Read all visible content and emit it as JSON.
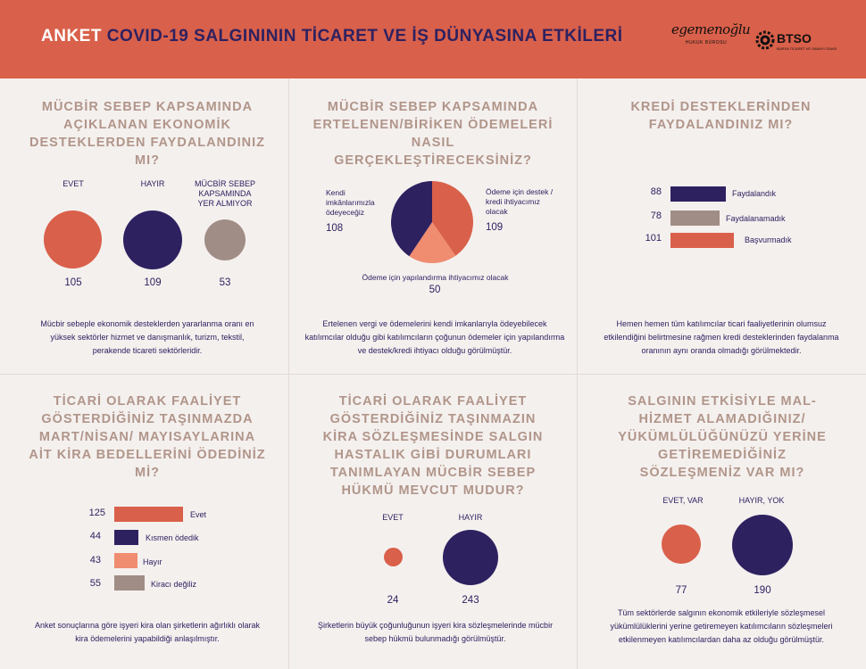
{
  "header": {
    "anket": "ANKET",
    "title": "COVID-19 SALGINININ TİCARET VE İŞ DÜNYASINA ETKİLERİ",
    "logo1_text": "egemenoğlu",
    "logo1_sub": "HUKUK BÜROSU",
    "logo2_text": "BTSO",
    "logo2_sub": "BURSA TİCARET VE SANAYİ ODASI"
  },
  "colors": {
    "orange": "#d9604a",
    "purple": "#2e2160",
    "taupe": "#a08d85",
    "salmon": "#f08c70",
    "title": "#b1958a",
    "header": "#d9604a"
  },
  "panels": {
    "p1": {
      "title": "MÜCBİR SEBEP KAPSAMINDA AÇIKLANAN EKONOMİK DESTEKLERDEN FAYDALANDINIZ MI?",
      "labels": [
        "EVET",
        "HAYIR",
        "MÜCBİR SEBEP KAPSAMINDA YER ALMIYOR"
      ],
      "values": [
        "105",
        "109",
        "53"
      ],
      "desc": "Mücbir sebeple ekonomik desteklerden yararlanma oranı en yüksek sektörler hizmet ve danışmanlık, turizm, tekstil, perakende ticareti sektörleridir."
    },
    "p2": {
      "title": "MÜCBİR SEBEP KAPSAMINDA ERTELENEN/BİRİKEN ÖDEMELERİ NASIL GERÇEKLEŞTİRECEKSİNİZ?",
      "label_a": "Kendi imkânlarımızla ödeyeceğiz",
      "value_a": "108",
      "label_b": "Ödeme için destek / kredi ihtiyacımız olacak",
      "value_b": "109",
      "label_c": "Ödeme için yapılandırma ihtiyacımız olacak",
      "value_c": "50",
      "desc": "Ertelenen vergi ve ödemelerini kendi imkanlarıyla ödeyebilecek katılımcılar olduğu gibi katılımcıların çoğunun ödemeler için yapılandırma ve destek/kredi ihtiyacı olduğu görülmüştür."
    },
    "p3": {
      "title": "KREDİ DESTEKLERİNDEN FAYDALANDINIZ MI?",
      "rows": [
        {
          "value": "88",
          "label": "Faydalandık"
        },
        {
          "value": "78",
          "label": "Faydalanamadık"
        },
        {
          "value": "101",
          "label": "Başvurmadık"
        }
      ],
      "desc": "Hemen hemen tüm katılımcılar ticari faaliyetlerinin olumsuz etkilendiğini belirtmesine rağmen kredi desteklerinden faydalanma oranının aynı oranda olmadığı görülmektedir."
    },
    "p4": {
      "title": "TİCARİ OLARAK FAALİYET GÖSTERDİĞİNİZ TAŞINMAZDA MART/NİSAN/ MAYISAYLARINA AİT KİRA BEDELLERİNİ ÖDEDİNİZ Mİ?",
      "rows": [
        {
          "value": "125",
          "label": "Evet"
        },
        {
          "value": "44",
          "label": "Kısmen ödedik"
        },
        {
          "value": "43",
          "label": "Hayır"
        },
        {
          "value": "55",
          "label": "Kiracı değiliz"
        }
      ],
      "desc": "Anket sonuçlarına göre işyeri kira olan şirketlerin ağırlıklı olarak kira ödemelerini yapabildiği anlaşılmıştır."
    },
    "p5": {
      "title": "TİCARİ OLARAK FAALİYET GÖSTERDİĞİNİZ TAŞINMAZIN KİRA SÖZLEŞMESİNDE SALGIN HASTALIK GİBİ DURUMLARI TANIMLAYAN MÜCBİR SEBEP HÜKMÜ MEVCUT MUDUR?",
      "labels": [
        "EVET",
        "HAYIR"
      ],
      "values": [
        "24",
        "243"
      ],
      "desc": "Şirketlerin büyük çoğunluğunun işyeri kira sözleşmelerinde mücbir sebep hükmü bulunmadığı görülmüştür."
    },
    "p6": {
      "title": "SALGININ ETKİSİYLE MAL- HİZMET ALAMADIĞINIZ/ YÜKÜMLÜLÜĞÜNÜZÜ YERİNE GETİREMEDİĞİNİZ SÖZLEŞMENİZ VAR MI?",
      "labels": [
        "EVET, VAR",
        "HAYIR, YOK"
      ],
      "values": [
        "77",
        "190"
      ],
      "desc": "Tüm sektörlerde salgının ekonomik etkileriyle sözleşmesel yükümlülüklerini yerine getiremeyen katılımcıların sözleşmeleri etkilenmeyen katılımcılardan daha az olduğu görülmüştür."
    }
  },
  "chart_data": [
    {
      "type": "bubble",
      "categories": [
        "EVET",
        "HAYIR",
        "MÜCBİR SEBEP KAPSAMINDA YER ALMIYOR"
      ],
      "values": [
        105,
        109,
        53
      ],
      "colors": [
        "#d9604a",
        "#2e2160",
        "#a08d85"
      ]
    },
    {
      "type": "pie",
      "categories": [
        "Kendi imkânlarımızla ödeyeceğiz",
        "Ödeme için destek / kredi ihtiyacımız olacak",
        "Ödeme için yapılandırma ihtiyacımız olacak"
      ],
      "values": [
        108,
        109,
        50
      ],
      "colors": [
        "#2e2160",
        "#d9604a",
        "#f08c70"
      ]
    },
    {
      "type": "bar",
      "categories": [
        "Faydalandık",
        "Faydalanamadık",
        "Başvurmadık"
      ],
      "values": [
        88,
        78,
        101
      ],
      "colors": [
        "#2e2160",
        "#a08d85",
        "#d9604a"
      ]
    },
    {
      "type": "bar",
      "categories": [
        "Evet",
        "Kısmen ödedik",
        "Hayır",
        "Kiracı değiliz"
      ],
      "values": [
        125,
        44,
        43,
        55
      ],
      "colors": [
        "#d9604a",
        "#2e2160",
        "#f08c70",
        "#a08d85"
      ]
    },
    {
      "type": "bubble",
      "categories": [
        "EVET",
        "HAYIR"
      ],
      "values": [
        24,
        243
      ],
      "colors": [
        "#d9604a",
        "#2e2160"
      ]
    },
    {
      "type": "bubble",
      "categories": [
        "EVET, VAR",
        "HAYIR, YOK"
      ],
      "values": [
        77,
        190
      ],
      "colors": [
        "#d9604a",
        "#2e2160"
      ]
    }
  ]
}
